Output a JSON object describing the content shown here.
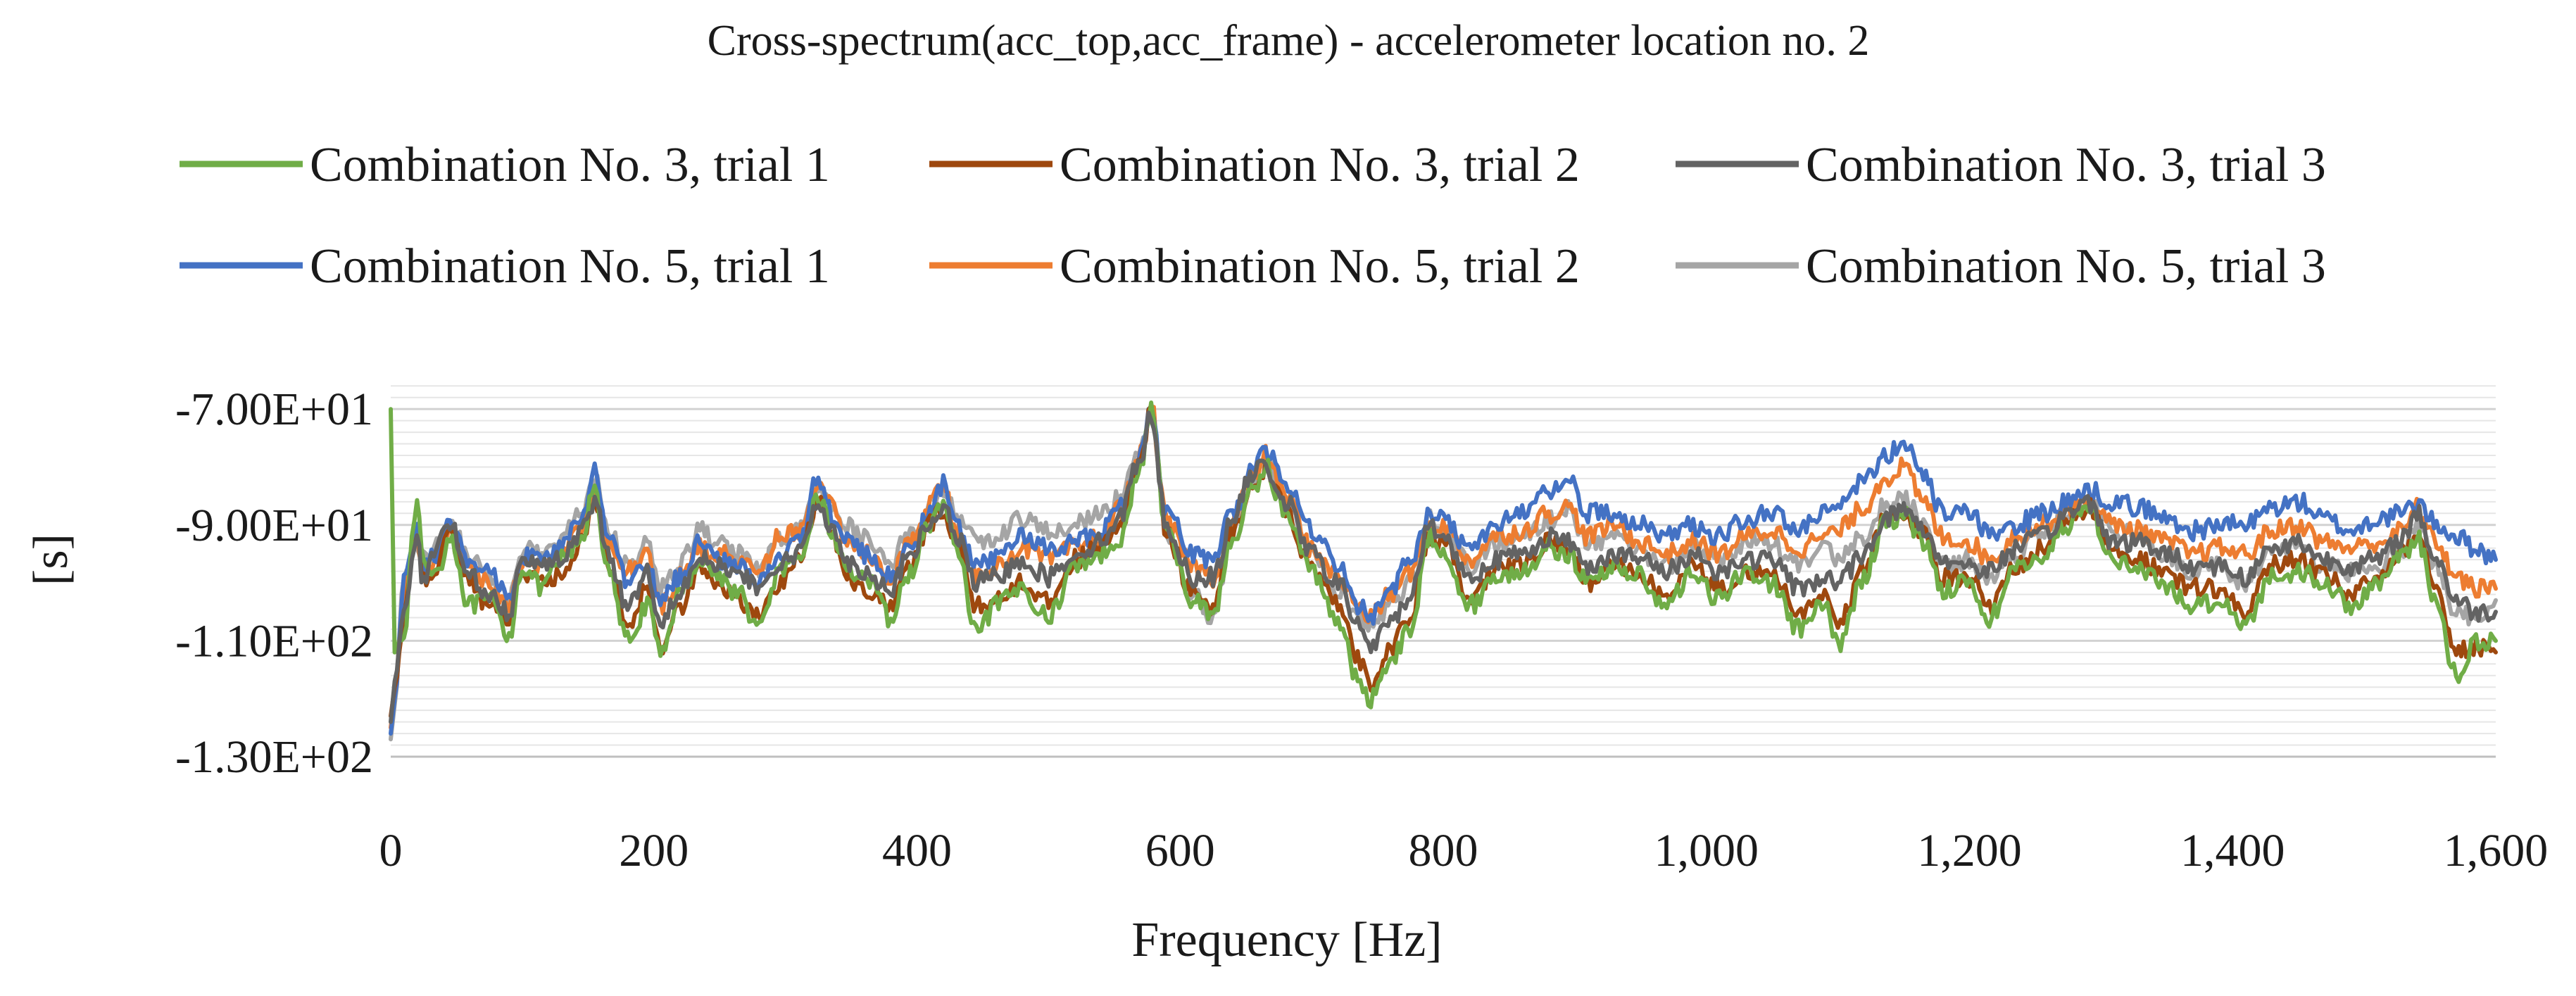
{
  "chart_data": {
    "type": "line",
    "title": "Cross-spectrum(acc_top,acc_frame) - accelerometer location no. 2",
    "xlabel": "Frequency [Hz]",
    "ylabel": "[s]",
    "xlim": [
      0,
      1600
    ],
    "ylim": [
      -130,
      -65
    ],
    "x_ticks": [
      0,
      200,
      400,
      600,
      800,
      1000,
      1200,
      1400,
      1600
    ],
    "x_tick_labels": [
      "0",
      "200",
      "400",
      "600",
      "800",
      "1,000",
      "1,200",
      "1,400",
      "1,600"
    ],
    "y_ticks": [
      -70,
      -90,
      -110,
      -130
    ],
    "y_tick_labels": [
      "-7.00E+01",
      "-9.00E+01",
      "-1.10E+02",
      "-1.30E+02"
    ],
    "grid": true,
    "legend_position": "top",
    "x": [
      0,
      3,
      10,
      20,
      25,
      35,
      45,
      60,
      75,
      90,
      100,
      115,
      130,
      145,
      155,
      165,
      180,
      195,
      205,
      220,
      235,
      250,
      265,
      280,
      295,
      310,
      325,
      335,
      345,
      360,
      380,
      395,
      410,
      420,
      430,
      445,
      460,
      480,
      500,
      520,
      540,
      555,
      570,
      578,
      590,
      610,
      625,
      640,
      655,
      665,
      680,
      700,
      720,
      735,
      745,
      760,
      775,
      790,
      800,
      820,
      840,
      860,
      880,
      895,
      910,
      930,
      950,
      970,
      990,
      1010,
      1030,
      1050,
      1070,
      1090,
      1100,
      1120,
      1135,
      1150,
      1165,
      1180,
      1200,
      1215,
      1235,
      1255,
      1275,
      1290,
      1310,
      1330,
      1350,
      1370,
      1390,
      1410,
      1430,
      1450,
      1470,
      1490,
      1510,
      1530,
      1540,
      1555,
      1570,
      1585,
      1600
    ],
    "series": [
      {
        "name": "Combination No. 3, trial 1",
        "color": "#70AD47",
        "values": [
          -70,
          -112,
          -108,
          -86,
          -97,
          -98,
          -92,
          -104,
          -103,
          -109,
          -97,
          -101,
          -96,
          -93,
          -83,
          -98,
          -110,
          -104,
          -112,
          -102,
          -96,
          -99,
          -102,
          -108,
          -98,
          -97,
          -85,
          -91,
          -97,
          -99,
          -106,
          -98,
          -90,
          -86,
          -94,
          -109,
          -104,
          -101,
          -106,
          -97,
          -95,
          -92,
          -80,
          -70,
          -92,
          -103,
          -105,
          -93,
          -84,
          -80,
          -88,
          -98,
          -106,
          -117,
          -120,
          -113,
          -108,
          -92,
          -94,
          -104,
          -99,
          -98,
          -94,
          -95,
          -100,
          -97,
          -99,
          -104,
          -98,
          -103,
          -98,
          -100,
          -108,
          -104,
          -111,
          -99,
          -90,
          -88,
          -93,
          -101,
          -100,
          -106,
          -98,
          -95,
          -90,
          -87,
          -96,
          -98,
          -101,
          -104,
          -103,
          -107,
          -99,
          -98,
          -100,
          -104,
          -100,
          -95,
          -92,
          -104,
          -116,
          -110,
          -110
        ]
      },
      {
        "name": "Combination No. 3, trial 2",
        "color": "#9E480E",
        "values": [
          -123,
          -118,
          -106,
          -91,
          -99,
          -97,
          -92,
          -100,
          -104,
          -106,
          -98,
          -100,
          -99,
          -93,
          -85,
          -97,
          -107,
          -101,
          -111,
          -104,
          -97,
          -101,
          -103,
          -106,
          -100,
          -96,
          -86,
          -91,
          -98,
          -101,
          -104,
          -97,
          -90,
          -87,
          -93,
          -104,
          -103,
          -100,
          -103,
          -96,
          -94,
          -90,
          -79,
          -70,
          -92,
          -102,
          -104,
          -91,
          -83,
          -80,
          -87,
          -98,
          -104,
          -113,
          -117,
          -111,
          -106,
          -92,
          -93,
          -103,
          -98,
          -97,
          -93,
          -94,
          -100,
          -97,
          -99,
          -103,
          -97,
          -101,
          -98,
          -99,
          -105,
          -102,
          -107,
          -98,
          -89,
          -88,
          -92,
          -99,
          -99,
          -104,
          -97,
          -94,
          -89,
          -87,
          -95,
          -96,
          -99,
          -101,
          -101,
          -105,
          -97,
          -96,
          -99,
          -102,
          -99,
          -94,
          -91,
          -100,
          -112,
          -111,
          -112
        ]
      },
      {
        "name": "Combination No. 3, trial 3",
        "color": "#636363",
        "values": [
          -124,
          -117,
          -104,
          -93,
          -100,
          -94,
          -90,
          -99,
          -102,
          -105,
          -95,
          -97,
          -96,
          -91,
          -86,
          -95,
          -104,
          -98,
          -107,
          -101,
          -95,
          -97,
          -99,
          -101,
          -97,
          -95,
          -86,
          -90,
          -96,
          -98,
          -101,
          -95,
          -90,
          -87,
          -92,
          -100,
          -99,
          -96,
          -99,
          -95,
          -93,
          -88,
          -78,
          -71,
          -91,
          -99,
          -99,
          -89,
          -81,
          -80,
          -86,
          -95,
          -100,
          -107,
          -111,
          -107,
          -102,
          -90,
          -92,
          -99,
          -96,
          -95,
          -92,
          -93,
          -97,
          -95,
          -96,
          -98,
          -95,
          -98,
          -96,
          -96,
          -101,
          -99,
          -100,
          -95,
          -89,
          -87,
          -91,
          -96,
          -97,
          -98,
          -94,
          -92,
          -88,
          -86,
          -93,
          -93,
          -95,
          -97,
          -97,
          -99,
          -94,
          -93,
          -96,
          -97,
          -96,
          -92,
          -88,
          -96,
          -103,
          -105,
          -105
        ]
      },
      {
        "name": "Combination No. 5, trial 1",
        "color": "#4472C4",
        "values": [
          -126,
          -120,
          -100,
          -90,
          -97,
          -95,
          -90,
          -97,
          -98,
          -102,
          -95,
          -96,
          -94,
          -89,
          -80,
          -92,
          -100,
          -97,
          -103,
          -99,
          -93,
          -96,
          -97,
          -100,
          -95,
          -93,
          -82,
          -88,
          -92,
          -95,
          -99,
          -94,
          -88,
          -83,
          -90,
          -97,
          -96,
          -92,
          -94,
          -93,
          -91,
          -86,
          -78,
          -70,
          -88,
          -95,
          -96,
          -88,
          -80,
          -77,
          -83,
          -91,
          -97,
          -104,
          -106,
          -101,
          -96,
          -88,
          -89,
          -94,
          -90,
          -88,
          -84,
          -82,
          -88,
          -88,
          -90,
          -92,
          -90,
          -92,
          -89,
          -88,
          -91,
          -88,
          -86,
          -82,
          -78,
          -76,
          -82,
          -88,
          -88,
          -92,
          -90,
          -88,
          -86,
          -84,
          -86,
          -87,
          -89,
          -91,
          -90,
          -90,
          -87,
          -86,
          -89,
          -91,
          -89,
          -88,
          -86,
          -90,
          -92,
          -94,
          -96
        ]
      },
      {
        "name": "Combination No. 5, trial 2",
        "color": "#ED7D31",
        "values": [
          -125,
          -119,
          -101,
          -92,
          -98,
          -96,
          -91,
          -98,
          -100,
          -104,
          -96,
          -97,
          -95,
          -90,
          -84,
          -93,
          -98,
          -95,
          -104,
          -99,
          -94,
          -95,
          -96,
          -99,
          -92,
          -91,
          -84,
          -87,
          -92,
          -95,
          -99,
          -93,
          -86,
          -83,
          -91,
          -99,
          -97,
          -94,
          -96,
          -94,
          -92,
          -87,
          -78,
          -70,
          -90,
          -97,
          -99,
          -89,
          -82,
          -78,
          -85,
          -94,
          -99,
          -104,
          -106,
          -102,
          -98,
          -90,
          -90,
          -96,
          -92,
          -91,
          -88,
          -87,
          -92,
          -90,
          -93,
          -95,
          -93,
          -95,
          -92,
          -91,
          -94,
          -92,
          -91,
          -87,
          -82,
          -80,
          -86,
          -92,
          -93,
          -96,
          -92,
          -90,
          -87,
          -86,
          -90,
          -91,
          -93,
          -95,
          -94,
          -95,
          -91,
          -90,
          -93,
          -94,
          -93,
          -91,
          -87,
          -93,
          -99,
          -101,
          -101
        ]
      },
      {
        "name": "Combination No. 5, trial 3",
        "color": "#A5A5A5",
        "values": [
          -127,
          -121,
          -98,
          -94,
          -96,
          -93,
          -89,
          -96,
          -99,
          -103,
          -94,
          -95,
          -92,
          -88,
          -82,
          -91,
          -97,
          -93,
          -101,
          -97,
          -91,
          -93,
          -95,
          -98,
          -93,
          -90,
          -83,
          -86,
          -90,
          -92,
          -96,
          -91,
          -87,
          -84,
          -88,
          -93,
          -92,
          -89,
          -91,
          -90,
          -88,
          -85,
          -77,
          -70,
          -93,
          -102,
          -106,
          -91,
          -82,
          -79,
          -86,
          -95,
          -101,
          -106,
          -108,
          -104,
          -100,
          -89,
          -91,
          -97,
          -93,
          -92,
          -89,
          -87,
          -93,
          -92,
          -95,
          -97,
          -94,
          -97,
          -93,
          -93,
          -97,
          -94,
          -96,
          -92,
          -87,
          -85,
          -90,
          -97,
          -96,
          -100,
          -95,
          -92,
          -88,
          -86,
          -91,
          -92,
          -95,
          -98,
          -97,
          -100,
          -95,
          -94,
          -97,
          -98,
          -97,
          -94,
          -90,
          -97,
          -105,
          -106,
          -103
        ]
      }
    ]
  }
}
